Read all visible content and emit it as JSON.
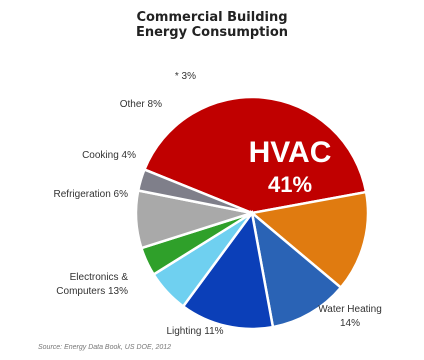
{
  "chart_data": {
    "type": "pie",
    "title_line1": "Commercial Building",
    "title_line2": "Energy Consumption",
    "slices": [
      {
        "label": "HVAC",
        "value": 41,
        "display_label": "HVAC",
        "display_value": "41%",
        "color": "#c00000"
      },
      {
        "label": "Water Heating",
        "value": 14,
        "display_label": "Water Heating",
        "display_value": "14%",
        "color": "#e07b10"
      },
      {
        "label": "Lighting",
        "value": 11,
        "display_label": "Lighting 11%",
        "display_value": "",
        "color": "#2a63b5"
      },
      {
        "label": "Electronics & Computers",
        "value": 13,
        "display_label": "Electronics &",
        "display_value": "Computers 13%",
        "color": "#0b3fb8"
      },
      {
        "label": "Refrigeration",
        "value": 6,
        "display_label": "Refrigeration 6%",
        "display_value": "",
        "color": "#6fd0f0"
      },
      {
        "label": "Cooking",
        "value": 4,
        "display_label": "Cooking 4%",
        "display_value": "",
        "color": "#2fa02a"
      },
      {
        "label": "Other",
        "value": 8,
        "display_label": "Other 8%",
        "display_value": "",
        "color": "#a9a9a9"
      },
      {
        "label": "*",
        "value": 3,
        "display_label": "* 3%",
        "display_value": "",
        "color": "#7f7f8a"
      }
    ]
  },
  "source_note": "Source: Energy Data Book, US DOE, 2012"
}
